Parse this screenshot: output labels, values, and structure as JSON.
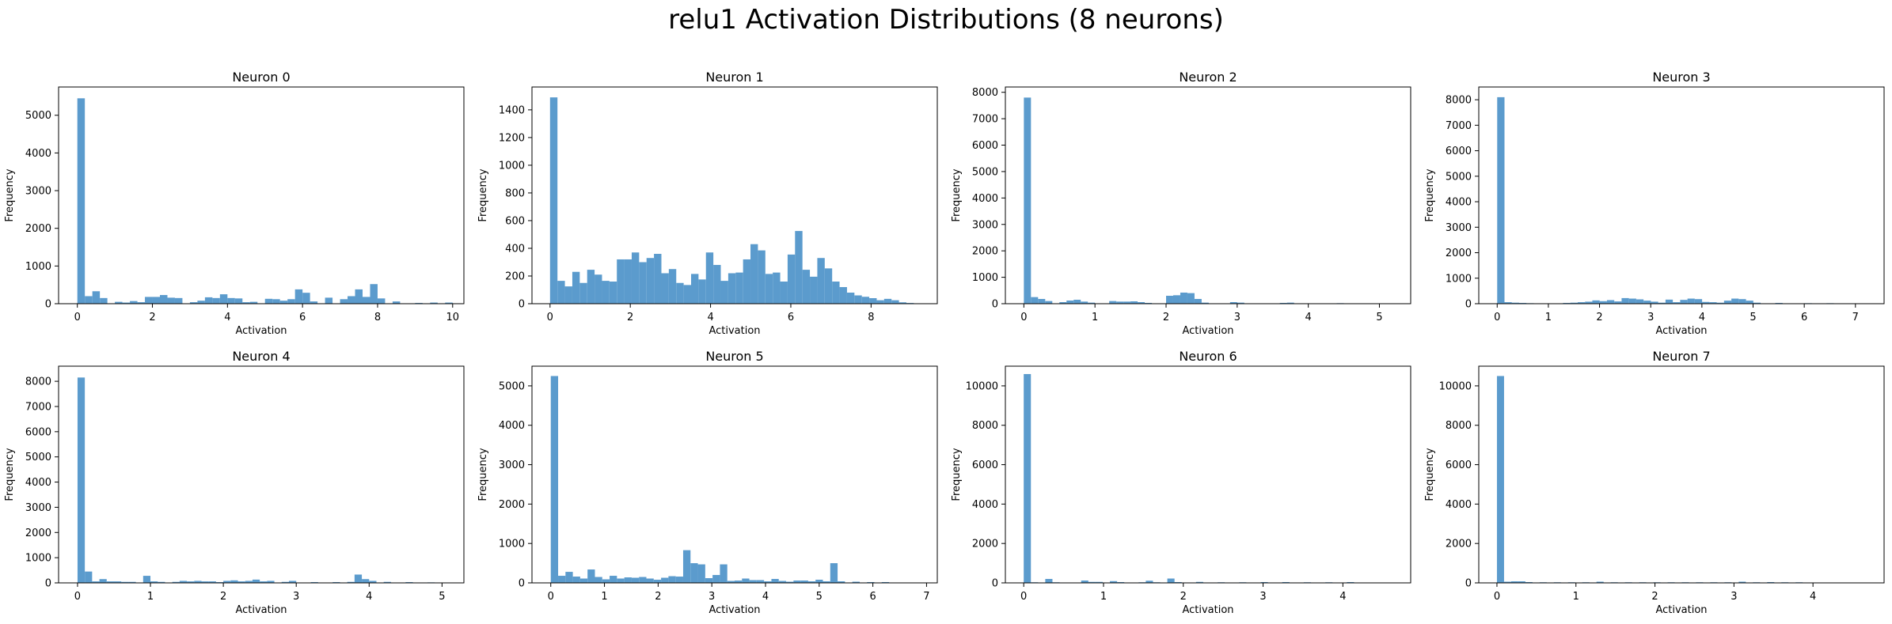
{
  "figure": {
    "title": "relu1 Activation Distributions (8 neurons)",
    "bar_color": "#5b9bcd"
  },
  "chart_data": [
    {
      "type": "bar",
      "title": "Neuron 0",
      "xlabel": "Activation",
      "ylabel": "Frequency",
      "xlim": [
        -0.5,
        10.3
      ],
      "ylim": [
        0,
        5750
      ],
      "xticks": [
        0,
        2,
        4,
        6,
        8,
        10
      ],
      "yticks": [
        0,
        1000,
        2000,
        3000,
        4000,
        5000
      ],
      "bin_width": 0.2,
      "bin_starts": [
        0.0,
        0.2,
        0.4,
        0.6,
        1.0,
        1.2,
        1.4,
        1.6,
        1.8,
        2.0,
        2.2,
        2.4,
        2.6,
        3.0,
        3.2,
        3.4,
        3.6,
        3.8,
        4.0,
        4.2,
        4.4,
        4.6,
        5.0,
        5.2,
        5.4,
        5.6,
        5.8,
        6.0,
        6.2,
        6.6,
        7.0,
        7.2,
        7.4,
        7.6,
        7.8,
        8.0,
        8.4,
        9.0,
        9.4,
        9.8
      ],
      "values": [
        5450,
        200,
        330,
        150,
        50,
        30,
        70,
        40,
        180,
        180,
        230,
        160,
        150,
        40,
        80,
        170,
        150,
        250,
        150,
        140,
        40,
        50,
        130,
        120,
        80,
        120,
        380,
        290,
        60,
        160,
        120,
        200,
        380,
        180,
        520,
        140,
        60,
        20,
        30,
        30
      ]
    },
    {
      "type": "bar",
      "title": "Neuron 1",
      "xlabel": "Activation",
      "ylabel": "Frequency",
      "xlim": [
        -0.45,
        9.65
      ],
      "ylim": [
        0,
        1565
      ],
      "xticks": [
        0,
        2,
        4,
        6,
        8
      ],
      "yticks": [
        0,
        200,
        400,
        600,
        800,
        1000,
        1200,
        1400
      ],
      "bin_width": 0.185,
      "bin_starts": [
        0.0,
        0.185,
        0.37,
        0.555,
        0.74,
        0.925,
        1.11,
        1.295,
        1.48,
        1.665,
        1.85,
        2.035,
        2.22,
        2.405,
        2.59,
        2.775,
        2.96,
        3.145,
        3.33,
        3.515,
        3.7,
        3.885,
        4.07,
        4.255,
        4.44,
        4.625,
        4.81,
        4.995,
        5.18,
        5.365,
        5.55,
        5.735,
        5.92,
        6.105,
        6.29,
        6.475,
        6.66,
        6.845,
        7.03,
        7.215,
        7.4,
        7.585,
        7.77,
        7.955,
        8.14,
        8.325,
        8.51,
        8.695,
        8.88
      ],
      "values": [
        1490,
        165,
        125,
        230,
        150,
        245,
        210,
        165,
        160,
        320,
        320,
        370,
        300,
        330,
        360,
        220,
        250,
        150,
        135,
        215,
        175,
        370,
        280,
        165,
        220,
        225,
        320,
        430,
        385,
        215,
        225,
        160,
        355,
        525,
        245,
        195,
        330,
        255,
        160,
        120,
        80,
        60,
        50,
        40,
        25,
        35,
        25,
        10,
        5
      ]
    },
    {
      "type": "bar",
      "title": "Neuron 2",
      "xlabel": "Activation",
      "ylabel": "Frequency",
      "xlim": [
        -0.26,
        5.44
      ],
      "ylim": [
        0,
        8200
      ],
      "xticks": [
        0,
        1,
        2,
        3,
        4,
        5
      ],
      "yticks": [
        0,
        1000,
        2000,
        3000,
        4000,
        5000,
        6000,
        7000,
        8000
      ],
      "bin_width": 0.1,
      "bin_starts": [
        0.0,
        0.1,
        0.2,
        0.3,
        0.5,
        0.6,
        0.7,
        0.8,
        0.9,
        1.2,
        1.3,
        1.4,
        1.5,
        1.6,
        1.7,
        2.0,
        2.1,
        2.2,
        2.3,
        2.4,
        2.5,
        2.9,
        3.0,
        3.6,
        3.7,
        4.4
      ],
      "values": [
        7800,
        250,
        180,
        100,
        60,
        120,
        150,
        80,
        40,
        100,
        80,
        80,
        90,
        60,
        30,
        300,
        320,
        420,
        400,
        180,
        40,
        60,
        40,
        30,
        40,
        20
      ]
    },
    {
      "type": "bar",
      "title": "Neuron 3",
      "xlabel": "Activation",
      "ylabel": "Frequency",
      "xlim": [
        -0.36,
        7.56
      ],
      "ylim": [
        0,
        8500
      ],
      "xticks": [
        0,
        1,
        2,
        3,
        4,
        5,
        6,
        7
      ],
      "yticks": [
        0,
        1000,
        2000,
        3000,
        4000,
        5000,
        6000,
        7000,
        8000
      ],
      "bin_width": 0.143,
      "bin_starts": [
        0.0,
        0.143,
        0.286,
        0.429,
        0.572,
        1.287,
        1.43,
        1.573,
        1.716,
        1.859,
        2.002,
        2.145,
        2.288,
        2.431,
        2.574,
        2.717,
        2.86,
        3.003,
        3.146,
        3.289,
        3.432,
        3.575,
        3.718,
        3.861,
        4.004,
        4.147,
        4.29,
        4.433,
        4.576,
        4.719,
        4.862,
        5.005,
        5.434,
        6.006,
        6.435,
        6.864
      ],
      "values": [
        8100,
        60,
        40,
        30,
        20,
        30,
        40,
        60,
        80,
        130,
        100,
        140,
        90,
        220,
        200,
        170,
        120,
        80,
        40,
        160,
        60,
        150,
        200,
        180,
        70,
        60,
        40,
        120,
        200,
        180,
        120,
        40,
        30,
        20,
        20,
        10
      ]
    },
    {
      "type": "bar",
      "title": "Neuron 4",
      "xlabel": "Activation",
      "ylabel": "Frequency",
      "xlim": [
        -0.26,
        5.3
      ],
      "ylim": [
        0,
        8600
      ],
      "xticks": [
        0,
        1,
        2,
        3,
        4,
        5
      ],
      "yticks": [
        0,
        1000,
        2000,
        3000,
        4000,
        5000,
        6000,
        7000,
        8000
      ],
      "bin_width": 0.1,
      "bin_starts": [
        0.0,
        0.1,
        0.2,
        0.3,
        0.4,
        0.5,
        0.6,
        0.7,
        0.9,
        1.0,
        1.1,
        1.3,
        1.4,
        1.5,
        1.6,
        1.7,
        1.8,
        1.9,
        2.0,
        2.1,
        2.2,
        2.3,
        2.4,
        2.5,
        2.6,
        2.8,
        2.9,
        3.2,
        3.5,
        3.7,
        3.8,
        3.9,
        4.0,
        4.2,
        4.5,
        4.8
      ],
      "values": [
        8150,
        450,
        60,
        150,
        60,
        60,
        40,
        40,
        280,
        60,
        40,
        40,
        80,
        60,
        80,
        60,
        60,
        30,
        80,
        100,
        60,
        80,
        130,
        60,
        80,
        40,
        80,
        30,
        30,
        40,
        330,
        150,
        80,
        40,
        30,
        20
      ]
    },
    {
      "type": "bar",
      "title": "Neuron 5",
      "xlabel": "Activation",
      "ylabel": "Frequency",
      "xlim": [
        -0.35,
        7.2
      ],
      "ylim": [
        0,
        5500
      ],
      "xticks": [
        0,
        1,
        2,
        3,
        4,
        5,
        6,
        7
      ],
      "yticks": [
        0,
        1000,
        2000,
        3000,
        4000,
        5000
      ],
      "bin_width": 0.137,
      "bin_starts": [
        0.0,
        0.137,
        0.274,
        0.411,
        0.548,
        0.685,
        0.822,
        0.959,
        1.096,
        1.233,
        1.37,
        1.507,
        1.644,
        1.781,
        1.918,
        2.055,
        2.192,
        2.329,
        2.466,
        2.603,
        2.74,
        2.877,
        3.014,
        3.151,
        3.288,
        3.425,
        3.562,
        3.699,
        3.836,
        3.973,
        4.11,
        4.247,
        4.384,
        4.521,
        4.658,
        4.795,
        4.932,
        5.069,
        5.206,
        5.343,
        5.617,
        5.891,
        6.165,
        6.439
      ],
      "values": [
        5250,
        180,
        280,
        160,
        110,
        340,
        150,
        90,
        180,
        110,
        140,
        130,
        150,
        110,
        80,
        130,
        170,
        160,
        830,
        500,
        470,
        120,
        200,
        470,
        50,
        60,
        110,
        70,
        70,
        40,
        100,
        50,
        30,
        60,
        60,
        40,
        80,
        40,
        500,
        40,
        30,
        20,
        20,
        10
      ]
    },
    {
      "type": "bar",
      "title": "Neuron 6",
      "xlabel": "Activation",
      "ylabel": "Frequency",
      "xlim": [
        -0.23,
        4.85
      ],
      "ylim": [
        0,
        11000
      ],
      "xticks": [
        0,
        1,
        2,
        3,
        4
      ],
      "yticks": [
        0,
        2000,
        4000,
        6000,
        8000,
        10000
      ],
      "bin_width": 0.09,
      "bin_starts": [
        0.0,
        0.09,
        0.27,
        0.36,
        0.72,
        0.81,
        0.9,
        1.08,
        1.17,
        1.44,
        1.53,
        1.62,
        1.8,
        1.89,
        2.16,
        2.43,
        2.7,
        2.97,
        3.24,
        3.51,
        3.78,
        4.05
      ],
      "values": [
        10600,
        30,
        200,
        30,
        120,
        50,
        50,
        90,
        40,
        30,
        110,
        30,
        220,
        40,
        50,
        30,
        30,
        40,
        40,
        30,
        30,
        40
      ]
    },
    {
      "type": "bar",
      "title": "Neuron 7",
      "xlabel": "Activation",
      "ylabel": "Frequency",
      "xlim": [
        -0.23,
        4.9
      ],
      "ylim": [
        0,
        11000
      ],
      "xticks": [
        0,
        1,
        2,
        3,
        4
      ],
      "yticks": [
        0,
        2000,
        4000,
        6000,
        8000,
        10000
      ],
      "bin_width": 0.09,
      "bin_starts": [
        0.0,
        0.09,
        0.18,
        0.27,
        0.36,
        0.54,
        0.72,
        0.9,
        1.08,
        1.26,
        1.44,
        1.62,
        1.8,
        1.98,
        2.16,
        2.34,
        2.52,
        2.7,
        2.88,
        3.06,
        3.24,
        3.42,
        3.6,
        3.78,
        4.05
      ],
      "values": [
        10500,
        60,
        80,
        80,
        40,
        30,
        30,
        30,
        30,
        60,
        30,
        30,
        30,
        30,
        30,
        30,
        30,
        30,
        30,
        60,
        30,
        40,
        30,
        30,
        20
      ]
    }
  ]
}
